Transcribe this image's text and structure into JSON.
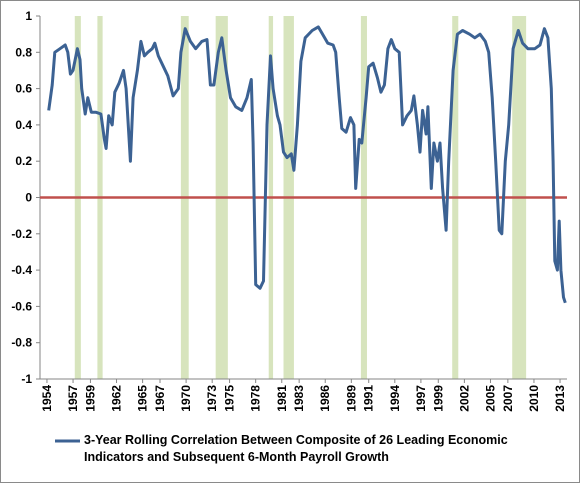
{
  "chart_data": {
    "type": "line",
    "xlim": [
      1953.2,
      2013.8
    ],
    "xticks": [
      1954,
      1957,
      1959,
      1962,
      1965,
      1967,
      1970,
      1973,
      1975,
      1978,
      1981,
      1983,
      1986,
      1989,
      1991,
      1994,
      1997,
      1999,
      2002,
      2005,
      2007,
      2010,
      2013
    ],
    "ylim": [
      -1,
      1
    ],
    "yticks": [
      1,
      0.8,
      0.6,
      0.4,
      0.2,
      0,
      -0.2,
      -0.4,
      -0.6,
      -0.8,
      -1
    ],
    "grid": false,
    "legend": "bottom",
    "reference_line": {
      "value": 0,
      "color": "#c0504d"
    },
    "recessions": {
      "color": "#d7e4bd",
      "periods": [
        [
          1957.2,
          1957.9
        ],
        [
          1959.8,
          1960.4
        ],
        [
          1969.4,
          1970.3
        ],
        [
          1973.4,
          1974.8
        ],
        [
          1979.5,
          1980.0
        ],
        [
          1981.2,
          1982.4
        ],
        [
          1990.1,
          1990.8
        ],
        [
          2000.6,
          2001.3
        ],
        [
          2007.5,
          2009.1
        ]
      ]
    },
    "series": [
      {
        "name": "3-Year Rolling Correlation Between Composite of 26 Leading Economic Indicators and Subsequent 6-Month Payroll Growth",
        "color": "#3c6293",
        "x": [
          1954.2,
          1954.6,
          1954.9,
          1955.5,
          1956.1,
          1956.4,
          1956.7,
          1957.0,
          1957.5,
          1957.8,
          1958.0,
          1958.4,
          1958.7,
          1959.1,
          1959.6,
          1960.2,
          1960.6,
          1960.8,
          1961.1,
          1961.5,
          1961.8,
          1962.3,
          1962.8,
          1963.1,
          1963.6,
          1963.9,
          1964.4,
          1964.8,
          1965.2,
          1965.6,
          1966.1,
          1966.4,
          1966.8,
          1967.4,
          1967.9,
          1968.5,
          1969.1,
          1969.4,
          1969.9,
          1970.5,
          1971.1,
          1971.8,
          1972.4,
          1972.8,
          1973.2,
          1973.7,
          1974.1,
          1974.6,
          1975.1,
          1975.7,
          1976.4,
          1977.0,
          1977.5,
          1977.7,
          1978.0,
          1978.5,
          1978.9,
          1979.3,
          1979.7,
          1980.0,
          1980.5,
          1980.8,
          1981.2,
          1981.6,
          1982.1,
          1982.4,
          1982.8,
          1983.2,
          1983.7,
          1984.5,
          1985.2,
          1985.7,
          1986.3,
          1986.9,
          1987.2,
          1987.6,
          1987.9,
          1988.4,
          1988.9,
          1989.3,
          1989.5,
          1989.9,
          1990.2,
          1990.7,
          1991.0,
          1991.5,
          1992.0,
          1992.4,
          1992.8,
          1993.2,
          1993.6,
          1994.0,
          1994.5,
          1994.9,
          1995.4,
          1995.9,
          1996.2,
          1996.6,
          1996.9,
          1997.2,
          1997.6,
          1997.8,
          1998.2,
          1998.5,
          1998.9,
          1999.2,
          1999.5,
          1999.9,
          2000.2,
          2000.7,
          2001.2,
          2001.8,
          2002.6,
          2003.2,
          2003.8,
          2004.4,
          2004.8,
          2005.2,
          2005.6,
          2006.0,
          2006.3,
          2006.7,
          2007.1,
          2007.6,
          2008.2,
          2008.7,
          2009.3,
          2010.1,
          2010.7,
          2011.2,
          2011.6,
          2012.0,
          2012.2,
          2012.4,
          2012.7,
          2012.9,
          2013.1,
          2013.4,
          2013.6
        ],
        "values": [
          0.48,
          0.62,
          0.8,
          0.82,
          0.84,
          0.8,
          0.68,
          0.7,
          0.82,
          0.76,
          0.6,
          0.46,
          0.55,
          0.47,
          0.47,
          0.46,
          0.32,
          0.27,
          0.45,
          0.4,
          0.58,
          0.63,
          0.7,
          0.6,
          0.2,
          0.55,
          0.7,
          0.86,
          0.78,
          0.8,
          0.82,
          0.85,
          0.78,
          0.72,
          0.67,
          0.56,
          0.6,
          0.8,
          0.93,
          0.86,
          0.82,
          0.86,
          0.87,
          0.62,
          0.62,
          0.8,
          0.88,
          0.7,
          0.55,
          0.5,
          0.48,
          0.55,
          0.65,
          0.3,
          -0.48,
          -0.5,
          -0.46,
          0.4,
          0.78,
          0.6,
          0.45,
          0.4,
          0.25,
          0.22,
          0.24,
          0.15,
          0.4,
          0.75,
          0.88,
          0.92,
          0.94,
          0.9,
          0.85,
          0.84,
          0.8,
          0.55,
          0.38,
          0.36,
          0.44,
          0.4,
          0.05,
          0.32,
          0.3,
          0.55,
          0.72,
          0.74,
          0.66,
          0.58,
          0.62,
          0.82,
          0.87,
          0.82,
          0.8,
          0.4,
          0.45,
          0.48,
          0.56,
          0.4,
          0.25,
          0.48,
          0.35,
          0.5,
          0.05,
          0.3,
          0.2,
          0.3,
          0.05,
          -0.18,
          0.2,
          0.7,
          0.9,
          0.92,
          0.9,
          0.88,
          0.9,
          0.86,
          0.8,
          0.55,
          0.2,
          -0.18,
          -0.2,
          0.2,
          0.4,
          0.82,
          0.92,
          0.85,
          0.82,
          0.82,
          0.84,
          0.93,
          0.88,
          0.6,
          0.2,
          -0.35,
          -0.4,
          -0.13,
          -0.4,
          -0.55,
          -0.58
        ]
      }
    ]
  }
}
